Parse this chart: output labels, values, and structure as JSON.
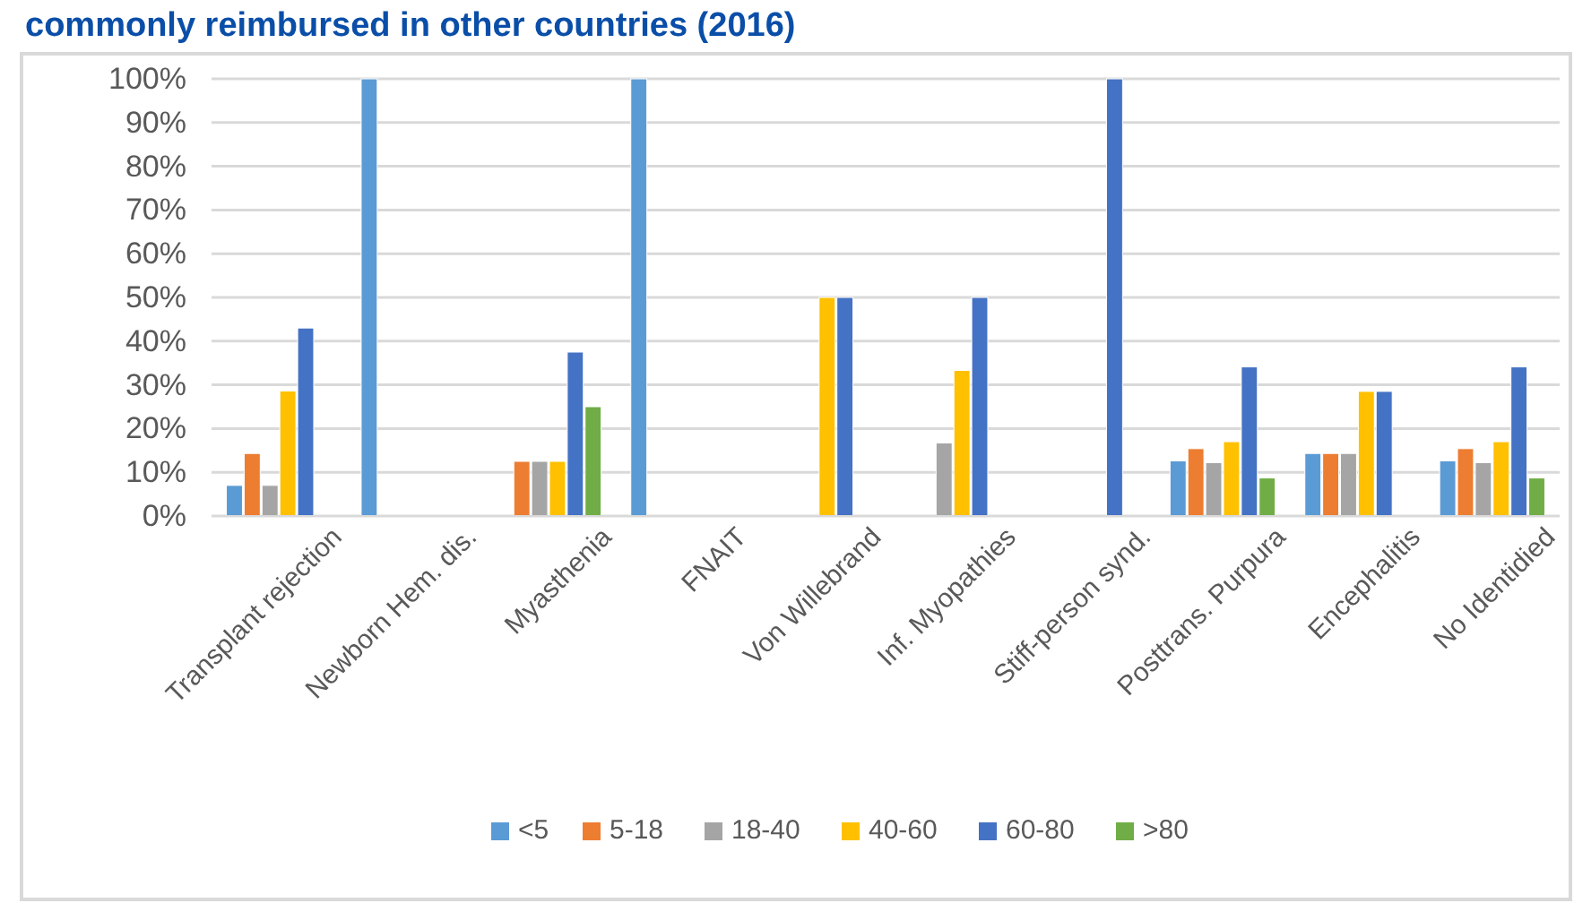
{
  "chart_data": {
    "type": "bar",
    "title": "commonly reimbursed in other countries (2016)",
    "categories": [
      "Transplant rejection",
      "Newborn Hem. dis.",
      "Myasthenia",
      "FNAIT",
      "Von Willebrand",
      "Inf. Myopathies",
      "Stiff-person synd.",
      "Posttrans. Purpura",
      "Encephalitis",
      "No Identidied"
    ],
    "series": [
      {
        "name": "<5",
        "color": "#5b9bd5",
        "values": [
          7,
          100,
          0,
          100,
          0,
          0,
          0,
          12.6,
          14.3,
          12.6
        ]
      },
      {
        "name": "5-18",
        "color": "#ed7d31",
        "values": [
          14.3,
          0,
          12.5,
          0,
          0,
          0,
          0,
          15.4,
          14.3,
          15.4
        ]
      },
      {
        "name": "18-40",
        "color": "#a5a5a5",
        "values": [
          7,
          0,
          12.5,
          0,
          0,
          16.7,
          0,
          12.2,
          14.3,
          12.2
        ]
      },
      {
        "name": "40-60",
        "color": "#ffc000",
        "values": [
          28.6,
          0,
          12.5,
          0,
          50,
          33.3,
          0,
          17,
          28.5,
          17
        ]
      },
      {
        "name": "60-80",
        "color": "#4472c4",
        "values": [
          43,
          0,
          37.5,
          0,
          50,
          50,
          100,
          34.1,
          28.5,
          34.1
        ]
      },
      {
        "name": ">80",
        "color": "#70ad47",
        "values": [
          0,
          0,
          25,
          0,
          0,
          0,
          0,
          8.7,
          0,
          8.7
        ]
      }
    ],
    "ylim": [
      0,
      100
    ],
    "yticks": [
      {
        "value": 0,
        "label": "0%"
      },
      {
        "value": 10,
        "label": "10%"
      },
      {
        "value": 20,
        "label": "20%"
      },
      {
        "value": 30,
        "label": "30%"
      },
      {
        "value": 40,
        "label": "40%"
      },
      {
        "value": 50,
        "label": "50%"
      },
      {
        "value": 60,
        "label": "60%"
      },
      {
        "value": 70,
        "label": "70%"
      },
      {
        "value": 80,
        "label": "80%"
      },
      {
        "value": 90,
        "label": "90%"
      },
      {
        "value": 100,
        "label": "100%"
      }
    ],
    "grid": "y",
    "legend": "bottom"
  }
}
